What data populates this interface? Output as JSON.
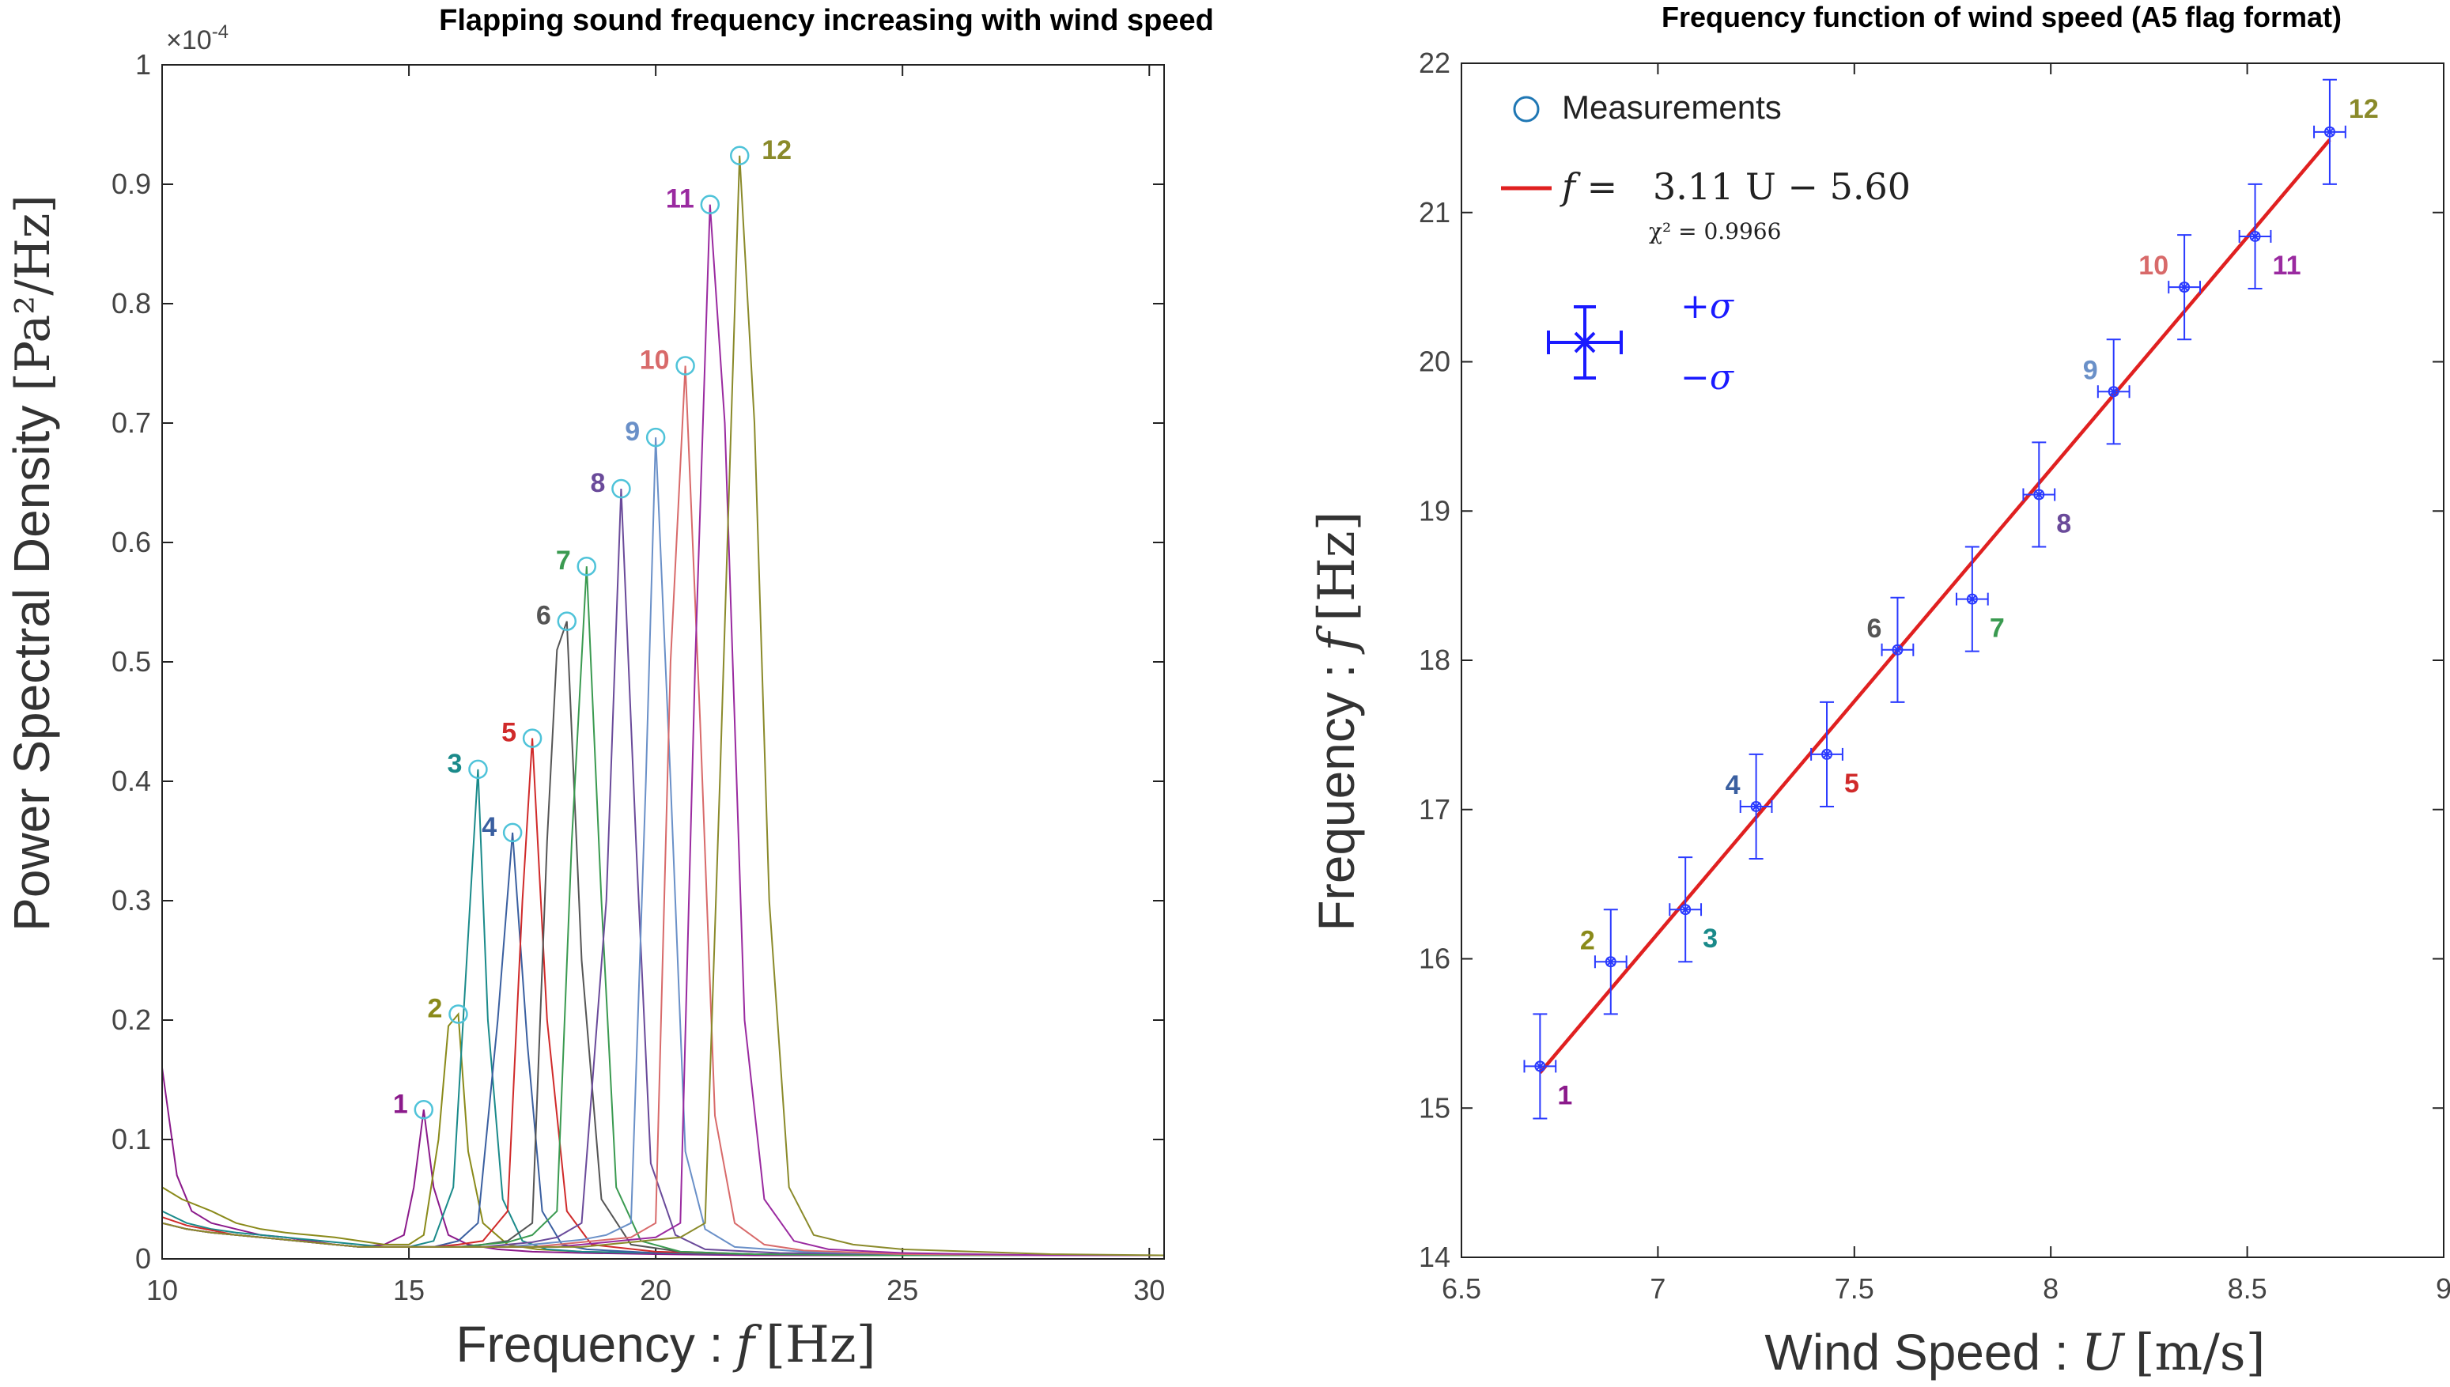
{
  "chart_data": [
    {
      "type": "line",
      "title": "Flapping sound frequency increasing with wind speed",
      "ylabel": "Power Spectral Density",
      "ylabel_unit": "[Pa²/Hz]",
      "xlabel": "Frequency :",
      "xlabel_symbol": "f",
      "xlabel_unit": "[Hz]",
      "multiplier": "×10",
      "multiplier_exp": "-4",
      "xlim": [
        10,
        30.3
      ],
      "ylim": [
        0,
        1
      ],
      "xticks": [
        10,
        15,
        20,
        25,
        30
      ],
      "yticks": [
        0,
        0.1,
        0.2,
        0.3,
        0.4,
        0.5,
        0.6,
        0.7,
        0.8,
        0.9,
        1
      ],
      "grid": false,
      "series": [
        {
          "label": "1",
          "color": "#8b1a8b",
          "peak": [
            15.3,
            0.125
          ],
          "x": [
            10.0,
            10.3,
            10.6,
            11.0,
            11.5,
            12.0,
            12.5,
            13.0,
            13.5,
            14.0,
            14.5,
            14.9,
            15.1,
            15.3,
            15.5,
            15.8,
            16.2,
            16.8,
            17.5,
            18.5,
            20,
            22,
            25,
            28,
            30.3
          ],
          "y": [
            0.16,
            0.07,
            0.04,
            0.03,
            0.025,
            0.02,
            0.018,
            0.015,
            0.012,
            0.01,
            0.012,
            0.02,
            0.06,
            0.125,
            0.06,
            0.02,
            0.012,
            0.008,
            0.006,
            0.005,
            0.004,
            0.003,
            0.003,
            0.003,
            0.003
          ]
        },
        {
          "label": "2",
          "color": "#8a8a1a",
          "peak": [
            16.0,
            0.205
          ],
          "x": [
            10.0,
            10.4,
            11.0,
            11.5,
            12.0,
            12.5,
            13.0,
            13.5,
            14.0,
            14.5,
            15.0,
            15.3,
            15.6,
            15.8,
            16.0,
            16.2,
            16.5,
            17.0,
            17.6,
            18.5,
            20,
            22,
            25,
            28,
            30.3
          ],
          "y": [
            0.06,
            0.05,
            0.04,
            0.03,
            0.025,
            0.022,
            0.02,
            0.018,
            0.015,
            0.012,
            0.012,
            0.02,
            0.1,
            0.195,
            0.205,
            0.09,
            0.03,
            0.012,
            0.008,
            0.006,
            0.005,
            0.004,
            0.003,
            0.003,
            0.003
          ]
        },
        {
          "label": "3",
          "color": "#1a8a8a",
          "peak": [
            16.4,
            0.41
          ],
          "x": [
            10.0,
            10.5,
            11.0,
            11.5,
            12.0,
            12.5,
            13.0,
            13.5,
            14.0,
            14.5,
            15.0,
            15.5,
            15.9,
            16.1,
            16.4,
            16.6,
            16.9,
            17.3,
            17.8,
            18.5,
            20,
            22,
            25,
            28,
            30.3
          ],
          "y": [
            0.04,
            0.03,
            0.025,
            0.022,
            0.02,
            0.018,
            0.016,
            0.014,
            0.012,
            0.01,
            0.01,
            0.015,
            0.06,
            0.2,
            0.41,
            0.2,
            0.05,
            0.015,
            0.008,
            0.006,
            0.005,
            0.004,
            0.003,
            0.003,
            0.003
          ]
        },
        {
          "label": "4",
          "color": "#3a5fa0",
          "peak": [
            17.1,
            0.357
          ],
          "x": [
            10.0,
            10.5,
            11.0,
            11.5,
            12.0,
            12.5,
            13.0,
            13.5,
            14.0,
            14.5,
            15.0,
            15.5,
            16.0,
            16.4,
            16.8,
            17.1,
            17.4,
            17.7,
            18.1,
            18.6,
            20,
            22,
            25,
            28,
            30.3
          ],
          "y": [
            0.03,
            0.025,
            0.022,
            0.02,
            0.018,
            0.016,
            0.014,
            0.012,
            0.01,
            0.01,
            0.01,
            0.01,
            0.015,
            0.03,
            0.2,
            0.357,
            0.18,
            0.04,
            0.012,
            0.008,
            0.005,
            0.004,
            0.003,
            0.003,
            0.003
          ]
        },
        {
          "label": "5",
          "color": "#d02a2a",
          "peak": [
            17.5,
            0.436
          ],
          "x": [
            10.0,
            10.5,
            11.0,
            11.5,
            12.0,
            12.5,
            13.0,
            13.5,
            14.0,
            14.5,
            15.0,
            15.5,
            16.0,
            16.5,
            17.0,
            17.3,
            17.5,
            17.8,
            18.2,
            18.7,
            20,
            22,
            25,
            28,
            30.3
          ],
          "y": [
            0.035,
            0.028,
            0.024,
            0.02,
            0.018,
            0.016,
            0.014,
            0.012,
            0.01,
            0.01,
            0.01,
            0.01,
            0.012,
            0.015,
            0.04,
            0.3,
            0.436,
            0.2,
            0.04,
            0.012,
            0.006,
            0.004,
            0.003,
            0.003,
            0.003
          ]
        },
        {
          "label": "6",
          "color": "#555555",
          "peak": [
            18.2,
            0.534
          ],
          "x": [
            10.0,
            10.5,
            11.0,
            11.5,
            12.0,
            12.5,
            13.0,
            13.5,
            14.0,
            14.5,
            15.0,
            15.5,
            16.0,
            16.5,
            17.0,
            17.5,
            17.8,
            18.0,
            18.2,
            18.5,
            18.9,
            19.5,
            20.5,
            22,
            25,
            28,
            30.3
          ],
          "y": [
            0.03,
            0.025,
            0.022,
            0.02,
            0.018,
            0.016,
            0.014,
            0.012,
            0.01,
            0.01,
            0.01,
            0.01,
            0.01,
            0.012,
            0.015,
            0.03,
            0.35,
            0.51,
            0.534,
            0.25,
            0.05,
            0.012,
            0.006,
            0.004,
            0.003,
            0.003,
            0.003
          ]
        },
        {
          "label": "7",
          "color": "#3a9a50",
          "peak": [
            18.6,
            0.58
          ],
          "x": [
            10.0,
            10.5,
            11.0,
            11.5,
            12.0,
            12.5,
            13.0,
            13.5,
            14.0,
            14.5,
            15.0,
            15.5,
            16.0,
            16.5,
            17.0,
            17.5,
            18.0,
            18.3,
            18.6,
            18.9,
            19.2,
            19.7,
            20.5,
            22,
            25,
            28,
            30.3
          ],
          "y": [
            0.03,
            0.025,
            0.022,
            0.02,
            0.018,
            0.016,
            0.014,
            0.012,
            0.01,
            0.01,
            0.01,
            0.01,
            0.01,
            0.012,
            0.014,
            0.02,
            0.04,
            0.35,
            0.58,
            0.3,
            0.06,
            0.015,
            0.006,
            0.004,
            0.003,
            0.003,
            0.003
          ]
        },
        {
          "label": "8",
          "color": "#6a4a9a",
          "peak": [
            19.3,
            0.645
          ],
          "x": [
            10.0,
            10.5,
            11.0,
            11.5,
            12.0,
            12.5,
            13.0,
            13.5,
            14.0,
            14.5,
            15.0,
            15.5,
            16.0,
            16.5,
            17.0,
            17.5,
            18.0,
            18.5,
            19.0,
            19.3,
            19.6,
            19.9,
            20.4,
            21,
            22.5,
            25,
            28,
            30.3
          ],
          "y": [
            0.03,
            0.025,
            0.022,
            0.02,
            0.018,
            0.016,
            0.014,
            0.012,
            0.01,
            0.01,
            0.01,
            0.01,
            0.01,
            0.01,
            0.012,
            0.014,
            0.018,
            0.03,
            0.3,
            0.645,
            0.35,
            0.08,
            0.02,
            0.008,
            0.005,
            0.004,
            0.003,
            0.003
          ]
        },
        {
          "label": "9",
          "color": "#6a90c8",
          "peak": [
            20.0,
            0.688
          ],
          "x": [
            10.0,
            10.5,
            11.0,
            11.5,
            12.0,
            12.5,
            13.0,
            13.5,
            14.0,
            14.5,
            15.0,
            15.5,
            16.0,
            16.5,
            17.0,
            17.5,
            18.0,
            18.5,
            19.0,
            19.5,
            19.8,
            20.0,
            20.3,
            20.6,
            21.0,
            21.6,
            23,
            25,
            28,
            30.3
          ],
          "y": [
            0.03,
            0.025,
            0.022,
            0.02,
            0.018,
            0.016,
            0.014,
            0.012,
            0.01,
            0.01,
            0.01,
            0.01,
            0.01,
            0.01,
            0.01,
            0.012,
            0.014,
            0.016,
            0.02,
            0.03,
            0.4,
            0.688,
            0.4,
            0.09,
            0.025,
            0.01,
            0.006,
            0.004,
            0.003,
            0.003
          ]
        },
        {
          "label": "10",
          "color": "#d86a6a",
          "peak": [
            20.6,
            0.748
          ],
          "x": [
            10.0,
            10.5,
            11.0,
            11.5,
            12.0,
            12.5,
            13.0,
            13.5,
            14.0,
            14.5,
            15.0,
            15.5,
            16.0,
            16.5,
            17.0,
            17.5,
            18.0,
            18.5,
            19.0,
            19.5,
            20.0,
            20.3,
            20.6,
            20.9,
            21.2,
            21.6,
            22.2,
            23,
            25,
            28,
            30.3
          ],
          "y": [
            0.03,
            0.025,
            0.022,
            0.02,
            0.018,
            0.016,
            0.014,
            0.012,
            0.01,
            0.01,
            0.01,
            0.01,
            0.01,
            0.01,
            0.01,
            0.01,
            0.012,
            0.014,
            0.016,
            0.018,
            0.03,
            0.5,
            0.748,
            0.45,
            0.12,
            0.03,
            0.012,
            0.007,
            0.004,
            0.003,
            0.003
          ]
        },
        {
          "label": "11",
          "color": "#9a2aa0",
          "peak": [
            21.1,
            0.883
          ],
          "x": [
            10.0,
            10.5,
            11.0,
            11.5,
            12.0,
            12.5,
            13.0,
            13.5,
            14.0,
            14.5,
            15.0,
            15.5,
            16.0,
            16.5,
            17.0,
            17.5,
            18.0,
            18.5,
            19.0,
            19.5,
            20.0,
            20.5,
            20.8,
            21.1,
            21.4,
            21.8,
            22.2,
            22.8,
            23.5,
            25,
            28,
            30.3
          ],
          "y": [
            0.03,
            0.025,
            0.022,
            0.02,
            0.018,
            0.016,
            0.014,
            0.012,
            0.01,
            0.01,
            0.01,
            0.01,
            0.01,
            0.01,
            0.01,
            0.01,
            0.01,
            0.012,
            0.014,
            0.016,
            0.018,
            0.03,
            0.5,
            0.883,
            0.7,
            0.2,
            0.05,
            0.015,
            0.008,
            0.005,
            0.003,
            0.003
          ]
        },
        {
          "label": "12",
          "color": "#8a8a2a",
          "peak": [
            21.7,
            0.924
          ],
          "x": [
            10.0,
            10.5,
            11.0,
            11.5,
            12.0,
            12.5,
            13.0,
            13.5,
            14.0,
            14.5,
            15.0,
            15.5,
            16.0,
            16.5,
            17.0,
            17.5,
            18.0,
            18.5,
            19.0,
            19.5,
            20.0,
            20.5,
            21.0,
            21.3,
            21.7,
            22.0,
            22.3,
            22.7,
            23.2,
            24,
            25,
            28,
            30.3
          ],
          "y": [
            0.03,
            0.025,
            0.022,
            0.02,
            0.018,
            0.016,
            0.014,
            0.012,
            0.01,
            0.01,
            0.01,
            0.01,
            0.01,
            0.01,
            0.01,
            0.01,
            0.01,
            0.01,
            0.012,
            0.014,
            0.016,
            0.018,
            0.03,
            0.4,
            0.924,
            0.7,
            0.3,
            0.06,
            0.02,
            0.012,
            0.008,
            0.004,
            0.003
          ]
        }
      ]
    },
    {
      "type": "scatter",
      "title": "Frequency function of wind speed (A5 flag format)",
      "ylabel": "Frequency :",
      "ylabel_symbol": "f",
      "ylabel_unit": "[Hz]",
      "xlabel": "Wind Speed :",
      "xlabel_symbol": "U",
      "xlabel_unit": "[m/s]",
      "xlim": [
        6.5,
        9
      ],
      "ylim": [
        14,
        22
      ],
      "xticks": [
        6.5,
        7,
        7.5,
        8,
        8.5,
        9
      ],
      "yticks": [
        14,
        15,
        16,
        17,
        18,
        19,
        20,
        21,
        22
      ],
      "grid": false,
      "legend": {
        "placement": "top-left",
        "measurements": "Measurements",
        "fit_lhs": "f =",
        "fit_formula": "3.11 U − 5.60",
        "chi_label": "χ² = 0.9966",
        "plus_sigma": "+σ",
        "minus_sigma": "−σ"
      },
      "fit": {
        "slope": 3.11,
        "intercept": -5.6,
        "x_range": [
          6.7,
          8.71
        ],
        "color": "#e02020"
      },
      "y_error": 0.35,
      "x_error": 0.04,
      "points": [
        {
          "label": "1",
          "x": 6.7,
          "y": 15.28,
          "color": "#8b1a8b",
          "side": "right"
        },
        {
          "label": "2",
          "x": 6.88,
          "y": 15.98,
          "color": "#8a8a1a",
          "side": "left"
        },
        {
          "label": "3",
          "x": 7.07,
          "y": 16.33,
          "color": "#1a8a8a",
          "side": "right"
        },
        {
          "label": "4",
          "x": 7.25,
          "y": 17.02,
          "color": "#3a5fa0",
          "side": "left"
        },
        {
          "label": "5",
          "x": 7.43,
          "y": 17.37,
          "color": "#d02a2a",
          "side": "right"
        },
        {
          "label": "6",
          "x": 7.61,
          "y": 18.07,
          "color": "#555555",
          "side": "left"
        },
        {
          "label": "7",
          "x": 7.8,
          "y": 18.41,
          "color": "#3a9a50",
          "side": "right"
        },
        {
          "label": "8",
          "x": 7.97,
          "y": 19.11,
          "color": "#6a4a9a",
          "side": "right"
        },
        {
          "label": "9",
          "x": 8.16,
          "y": 19.8,
          "color": "#6a90c8",
          "side": "left"
        },
        {
          "label": "10",
          "x": 8.34,
          "y": 20.5,
          "color": "#d86a6a",
          "side": "left"
        },
        {
          "label": "11",
          "x": 8.52,
          "y": 20.84,
          "color": "#9a2aa0",
          "side": "right"
        },
        {
          "label": "12",
          "x": 8.71,
          "y": 21.54,
          "color": "#8a8a2a",
          "side": "right"
        }
      ]
    }
  ]
}
